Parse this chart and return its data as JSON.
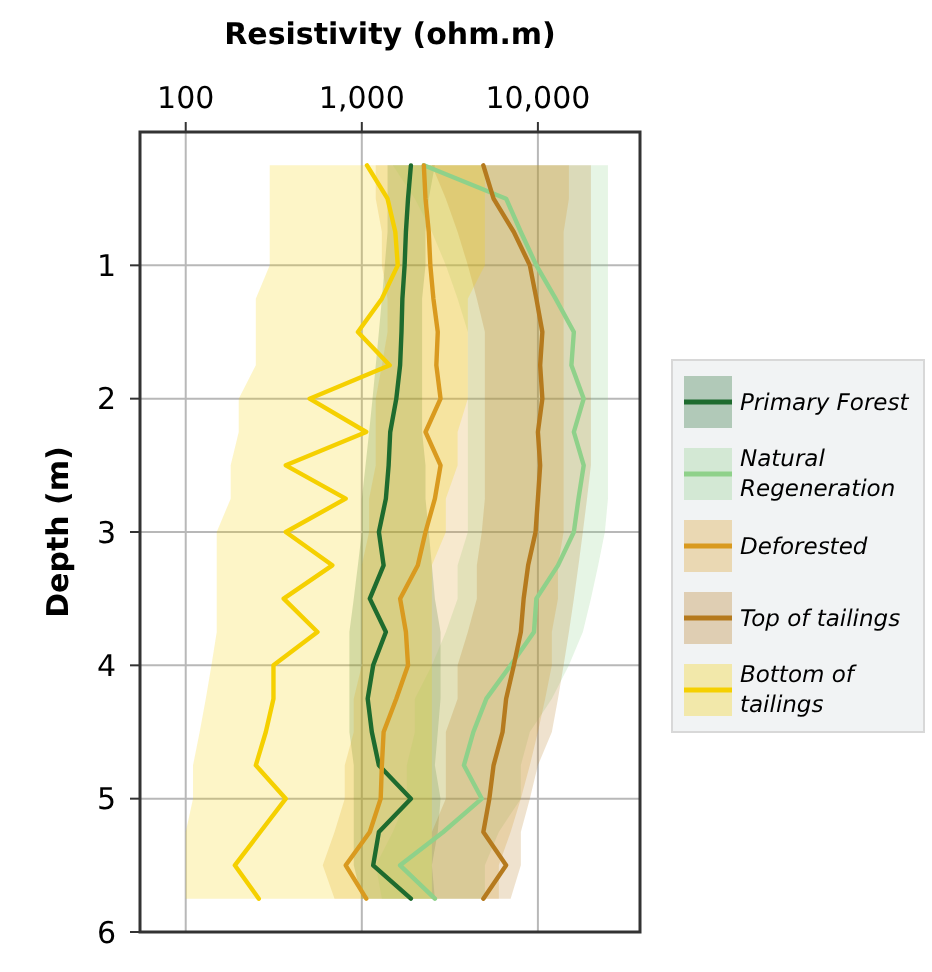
{
  "chart_data": {
    "type": "line",
    "orientation": "horizontal",
    "xlabel": "Resistivity (ohm.m)",
    "ylabel": "Depth (m)",
    "log": "x",
    "xlim": [
      55,
      38000
    ],
    "xticks": [
      {
        "value": 100,
        "label": "100"
      },
      {
        "value": 1000,
        "label": "1,000"
      },
      {
        "value": 10000,
        "label": "10,000"
      }
    ],
    "ylim": [
      6,
      0
    ],
    "yticks": [
      1,
      2,
      3,
      4,
      5,
      6
    ],
    "grid": true,
    "legend": "right",
    "line_style": "solid",
    "series": [
      {
        "name": "Primary Forest",
        "color": "#1e6b2e",
        "x": [
          0.25,
          0.5,
          0.75,
          1,
          1.25,
          1.5,
          1.75,
          2,
          2.25,
          2.5,
          2.75,
          3,
          3.25,
          3.5,
          3.75,
          4,
          4.25,
          4.5,
          4.75,
          5,
          5.25,
          5.5,
          5.75
        ],
        "values": [
          1900,
          1830,
          1780,
          1750,
          1700,
          1680,
          1650,
          1570,
          1450,
          1420,
          1370,
          1250,
          1330,
          1110,
          1370,
          1160,
          1080,
          1140,
          1250,
          1900,
          1250,
          1160,
          1900
        ],
        "lower": [
          1400,
          1400,
          1400,
          1350,
          1300,
          1250,
          1200,
          1150,
          1100,
          1050,
          1000,
          1000,
          950,
          900,
          850,
          850,
          850,
          850,
          900,
          900,
          900,
          900,
          1000
        ],
        "upper": [
          2600,
          2400,
          2300,
          2300,
          2200,
          2200,
          2200,
          2200,
          2200,
          2300,
          2300,
          2400,
          2500,
          2600,
          2800,
          2800,
          2800,
          2700,
          2600,
          2800,
          2700,
          2500,
          2600
        ]
      },
      {
        "name": "Natural Regeneration",
        "color": "#8fd18a",
        "x": [
          0.25,
          0.5,
          0.75,
          1,
          1.25,
          1.5,
          1.75,
          2,
          2.25,
          2.5,
          2.75,
          3,
          3.25,
          3.5,
          3.75,
          4,
          4.25,
          4.5,
          4.75,
          5,
          5.25,
          5.5,
          5.75
        ],
        "values": [
          2250,
          6600,
          8000,
          9800,
          12600,
          16000,
          15500,
          18200,
          16000,
          18200,
          17000,
          16000,
          13000,
          9800,
          9500,
          7000,
          5100,
          4300,
          3800,
          4800,
          2900,
          1650,
          2600
        ],
        "lower": [
          1500,
          2000,
          2500,
          3000,
          3500,
          4000,
          4000,
          4000,
          4000,
          4000,
          4000,
          4000,
          3500,
          3500,
          3000,
          2500,
          2000,
          2000,
          1800,
          1800,
          1500,
          1200,
          1300
        ],
        "upper": [
          25000,
          25000,
          25000,
          25000,
          25000,
          25000,
          25000,
          25000,
          25000,
          25000,
          25000,
          24000,
          22000,
          20000,
          18000,
          15000,
          12000,
          9000,
          8000,
          8000,
          6000,
          5000,
          5000
        ]
      },
      {
        "name": "Deforested",
        "color": "#d99a1f",
        "x": [
          0.25,
          0.5,
          0.75,
          1,
          1.25,
          1.5,
          1.75,
          2,
          2.25,
          2.5,
          2.75,
          3,
          3.25,
          3.5,
          3.75,
          4,
          4.25,
          4.5,
          4.75,
          5,
          5.25,
          5.5,
          5.75
        ],
        "values": [
          2250,
          2300,
          2400,
          2450,
          2550,
          2700,
          2650,
          2800,
          2300,
          2800,
          2600,
          2300,
          2080,
          1650,
          1780,
          1830,
          1570,
          1330,
          1300,
          1280,
          1110,
          810,
          1060
        ],
        "lower": [
          1200,
          1200,
          1300,
          1300,
          1400,
          1400,
          1300,
          1200,
          1200,
          1200,
          1100,
          1100,
          1000,
          1000,
          1000,
          1000,
          900,
          900,
          800,
          800,
          700,
          600,
          700
        ],
        "upper": [
          15000,
          15000,
          14000,
          14000,
          14000,
          14000,
          14000,
          14000,
          14000,
          14000,
          14000,
          14000,
          13000,
          13000,
          12000,
          12000,
          11000,
          10000,
          9000,
          8000,
          7000,
          6000,
          6000
        ]
      },
      {
        "name": "Top of tailings",
        "color": "#b57a1e",
        "x": [
          0.25,
          0.5,
          0.75,
          1,
          1.25,
          1.5,
          1.75,
          2,
          2.25,
          2.5,
          2.75,
          3,
          3.25,
          3.5,
          3.75,
          4,
          4.25,
          4.5,
          4.75,
          5,
          5.25,
          5.5,
          5.75
        ],
        "values": [
          4900,
          5600,
          7300,
          9000,
          9800,
          10600,
          10300,
          10600,
          10000,
          10300,
          10000,
          9700,
          8800,
          8300,
          8000,
          7300,
          6600,
          6300,
          5600,
          5300,
          4900,
          6600,
          4900
        ],
        "lower": [
          2500,
          3000,
          3500,
          4000,
          4500,
          5000,
          5000,
          5000,
          5000,
          5000,
          5000,
          4800,
          4500,
          4500,
          4000,
          3500,
          3500,
          3000,
          3000,
          3000,
          2500,
          2500,
          2500
        ],
        "upper": [
          20000,
          20000,
          20000,
          20000,
          20000,
          20000,
          20000,
          20000,
          20000,
          20000,
          19000,
          18000,
          17000,
          16000,
          15000,
          14000,
          13000,
          12000,
          10000,
          9000,
          8000,
          8000,
          7000
        ]
      },
      {
        "name": "Bottom of tailings",
        "color": "#f5d000",
        "x": [
          0.25,
          0.5,
          0.75,
          1,
          1.25,
          1.5,
          1.75,
          2,
          2.25,
          2.5,
          2.75,
          3,
          3.25,
          3.5,
          3.75,
          4,
          4.25,
          4.5,
          4.75,
          5,
          5.25,
          5.5,
          5.75
        ],
        "values": [
          1070,
          1400,
          1550,
          1600,
          1300,
          950,
          1440,
          505,
          1060,
          370,
          810,
          370,
          680,
          360,
          560,
          315,
          315,
          285,
          250,
          370,
          265,
          190,
          260
        ],
        "lower": [
          300,
          300,
          300,
          300,
          250,
          250,
          250,
          200,
          200,
          180,
          180,
          150,
          150,
          150,
          150,
          140,
          130,
          120,
          110,
          110,
          100,
          100,
          100
        ],
        "upper": [
          5000,
          5000,
          5000,
          5000,
          4000,
          4000,
          4000,
          4000,
          3500,
          3500,
          3000,
          3000,
          2500,
          2500,
          2500,
          2500,
          2500,
          2500,
          2500,
          2500,
          2500,
          2500,
          2500
        ]
      }
    ]
  }
}
